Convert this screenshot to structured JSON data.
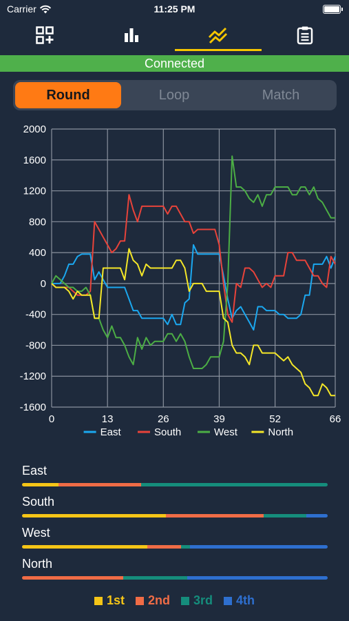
{
  "status_bar": {
    "carrier": "Carrier",
    "time": "11:25 PM"
  },
  "tabs": [
    {
      "name": "add-score-tab",
      "icon": "grid-plus-icon",
      "active": false
    },
    {
      "name": "stats-tab",
      "icon": "bar-chart-icon",
      "active": false
    },
    {
      "name": "trend-tab",
      "icon": "trend-chart-icon",
      "active": true
    },
    {
      "name": "log-tab",
      "icon": "clipboard-icon",
      "active": false
    }
  ],
  "connection": {
    "label": "Connected",
    "color": "#4fb04b"
  },
  "segments": [
    {
      "label": "Round",
      "active": true
    },
    {
      "label": "Loop",
      "active": false
    },
    {
      "label": "Match",
      "active": false
    }
  ],
  "chart_data": {
    "type": "line",
    "x_ticks": [
      0,
      13,
      26,
      39,
      52,
      66
    ],
    "y_ticks": [
      2000,
      1600,
      1200,
      800,
      400,
      0,
      -400,
      -800,
      -1200,
      -1600
    ],
    "xlim": [
      0,
      66
    ],
    "ylim": [
      -1600,
      2000
    ],
    "grid": true,
    "legend_position": "bottom",
    "series": [
      {
        "name": "East",
        "color": "#1ba8f0",
        "values": [
          0,
          0,
          0,
          100,
          250,
          250,
          350,
          380,
          380,
          380,
          50,
          150,
          50,
          -50,
          -50,
          -50,
          -50,
          -50,
          -200,
          -350,
          -350,
          -450,
          -450,
          -450,
          -450,
          -450,
          -450,
          -530,
          -400,
          -530,
          -530,
          -250,
          -200,
          500,
          380,
          380,
          380,
          380,
          380,
          380,
          100,
          -200,
          -450,
          -350,
          -300,
          -400,
          -500,
          -600,
          -300,
          -300,
          -350,
          -350,
          -350,
          -400,
          -400,
          -450,
          -450,
          -450,
          -400,
          -150,
          -150,
          250,
          250,
          250,
          350,
          200,
          350
        ]
      },
      {
        "name": "South",
        "color": "#e8433a",
        "values": [
          0,
          -50,
          -50,
          -50,
          -50,
          -100,
          -150,
          -150,
          -150,
          -100,
          800,
          700,
          600,
          500,
          400,
          450,
          550,
          550,
          1150,
          950,
          800,
          1000,
          1000,
          1000,
          1000,
          1000,
          1000,
          900,
          1000,
          1000,
          900,
          800,
          800,
          650,
          700,
          700,
          700,
          700,
          700,
          500,
          0,
          -400,
          -500,
          0,
          -50,
          200,
          200,
          150,
          50,
          -50,
          0,
          -50,
          100,
          100,
          100,
          400,
          400,
          300,
          300,
          300,
          200,
          100,
          100,
          0,
          -50,
          350,
          250
        ]
      },
      {
        "name": "West",
        "color": "#4cae45",
        "values": [
          0,
          100,
          50,
          0,
          -50,
          -50,
          -100,
          -100,
          -50,
          -150,
          -450,
          -450,
          -600,
          -700,
          -550,
          -700,
          -700,
          -800,
          -950,
          -1050,
          -700,
          -850,
          -700,
          -800,
          -750,
          -750,
          -750,
          -650,
          -650,
          -750,
          -650,
          -750,
          -950,
          -1100,
          -1100,
          -1100,
          -1050,
          -950,
          -950,
          -950,
          -750,
          0,
          1650,
          1250,
          1250,
          1200,
          1100,
          1050,
          1150,
          1000,
          1150,
          1150,
          1250,
          1250,
          1250,
          1250,
          1150,
          1150,
          1250,
          1250,
          1150,
          1250,
          1100,
          1050,
          950,
          850,
          850
        ]
      },
      {
        "name": "North",
        "color": "#f5e728",
        "values": [
          0,
          -50,
          -50,
          -50,
          -100,
          -200,
          -100,
          -150,
          -150,
          -150,
          -450,
          -450,
          200,
          200,
          200,
          200,
          200,
          50,
          450,
          300,
          250,
          100,
          250,
          200,
          200,
          200,
          200,
          200,
          200,
          300,
          300,
          200,
          -100,
          0,
          0,
          0,
          -100,
          -100,
          -100,
          -100,
          -450,
          -500,
          -800,
          -900,
          -900,
          -950,
          -1050,
          -800,
          -800,
          -900,
          -900,
          -900,
          -900,
          -950,
          -1000,
          -950,
          -1050,
          -1100,
          -1150,
          -1300,
          -1350,
          -1450,
          -1450,
          -1300,
          -1350,
          -1450,
          -1450
        ]
      }
    ]
  },
  "rank_stats": {
    "labels": [
      "1st",
      "2nd",
      "3rd",
      "4th"
    ],
    "colors": [
      "#f5c517",
      "#f06c46",
      "#158d7c",
      "#2e6fcf"
    ],
    "players": [
      {
        "name": "East",
        "shares": [
          0.12,
          0.27,
          0.61,
          0.0
        ]
      },
      {
        "name": "South",
        "shares": [
          0.47,
          0.32,
          0.14,
          0.07
        ]
      },
      {
        "name": "West",
        "shares": [
          0.41,
          0.11,
          0.03,
          0.45
        ]
      },
      {
        "name": "North",
        "shares": [
          0.0,
          0.33,
          0.21,
          0.46
        ]
      }
    ]
  }
}
